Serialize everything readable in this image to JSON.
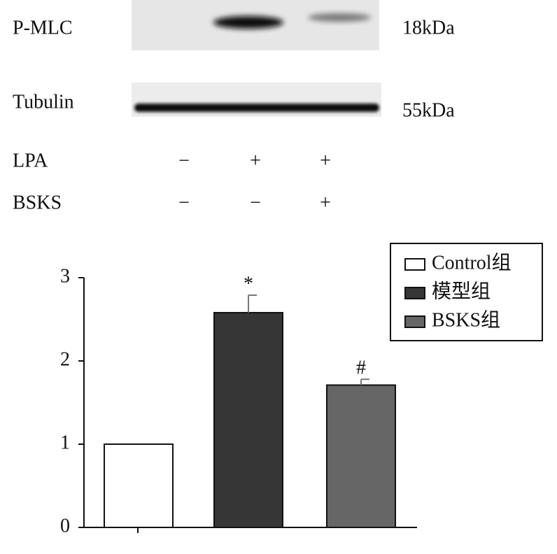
{
  "blot": {
    "rows": [
      {
        "label": "P-MLC",
        "size": "18kDa"
      },
      {
        "label": "Tubulin",
        "size": "55kDa"
      }
    ],
    "conditions": [
      {
        "label": "LPA",
        "signs": [
          "−",
          "+",
          "+"
        ]
      },
      {
        "label": "BSKS",
        "signs": [
          "−",
          "−",
          "+"
        ]
      }
    ]
  },
  "chart_data": {
    "type": "bar",
    "categories": [
      null
    ],
    "series": [
      {
        "name": "Control组",
        "color": "#ffffff",
        "values": [
          1.0
        ]
      },
      {
        "name": "模型组",
        "color": "#363636",
        "values": [
          2.58
        ],
        "errors": [
          0.21
        ],
        "annotation": "*"
      },
      {
        "name": "BSKS组",
        "color": "#666666",
        "values": [
          1.71
        ],
        "errors": [
          0.07
        ],
        "annotation": "#"
      }
    ],
    "ylim": [
      0,
      3
    ],
    "yticks": [
      0,
      1,
      2,
      3
    ],
    "grid": false,
    "legend": "upper right"
  }
}
